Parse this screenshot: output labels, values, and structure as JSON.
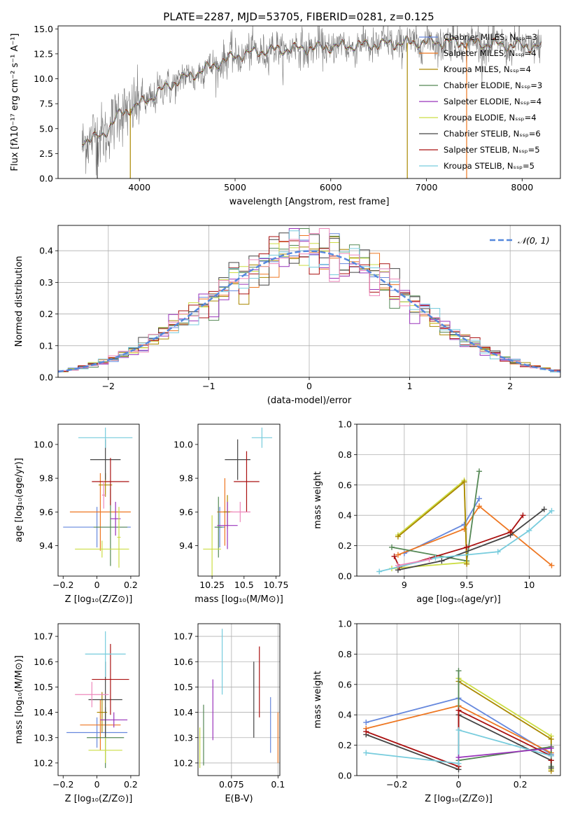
{
  "figure_title": "PLATE=2287, MJD=53705, FIBERID=0281, z=0.125",
  "colors": {
    "Chabrier MILES": "#6688dd",
    "Salpeter MILES": "#ee7722",
    "Kroupa MILES": "#aa8800",
    "Chabrier ELODIE": "#558855",
    "Salpeter ELODIE": "#9933bb",
    "Kroupa ELODIE": "#ccdd44",
    "Chabrier STELIB": "#444444",
    "Salpeter STELIB": "#aa1111",
    "Kroupa STELIB": "#77ccdd",
    "extra_pink": "#ee88bb",
    "gaussian": "#5588dd",
    "data_gray": "#777777"
  },
  "chart_data": [
    {
      "id": "spectrum",
      "type": "line",
      "title": "PLATE=2287, MJD=53705, FIBERID=0281, z=0.125",
      "xlabel": "wavelength [Angstrom, rest frame]",
      "ylabel": "Flux [fλ10⁻¹⁷ erg cm⁻² s⁻¹ A⁻¹]",
      "xlim": [
        3150,
        8400
      ],
      "ylim": [
        0,
        15.3
      ],
      "xticks": [
        4000,
        5000,
        6000,
        7000,
        8000
      ],
      "yticks": [
        0.0,
        2.5,
        5.0,
        7.5,
        10.0,
        12.5,
        15.0
      ],
      "legend": "right",
      "legend_entries": [
        "Chabrier MILES, Nₛₛₚ=3",
        "Salpeter MILES, Nₛₛₚ=4",
        "Kroupa MILES, Nₛₛₚ=4",
        "Chabrier ELODIE, Nₛₛₚ=3",
        "Salpeter ELODIE, Nₛₛₚ=4",
        "Kroupa ELODIE, Nₛₛₚ=4",
        "Chabrier STELIB, Nₛₛₚ=6",
        "Salpeter STELIB, Nₛₛₚ=5",
        "Kroupa STELIB, Nₛₛₚ=5"
      ],
      "continuum": {
        "x": [
          3400,
          3600,
          3800,
          3950,
          4100,
          4300,
          4500,
          4700,
          5000,
          5300,
          5600,
          6000,
          6400,
          6800,
          7200,
          7600,
          8000,
          8200
        ],
        "y": [
          3.8,
          4.2,
          6.5,
          7.2,
          8.0,
          9.3,
          10.2,
          11.0,
          12.3,
          12.8,
          13.0,
          13.2,
          13.4,
          13.6,
          13.7,
          13.5,
          13.3,
          13.2
        ]
      }
    },
    {
      "id": "residuals",
      "type": "line",
      "xlabel": "(data-model)/error",
      "ylabel": "Normed distribution",
      "xlim": [
        -2.5,
        2.5
      ],
      "ylim": [
        0,
        0.48
      ],
      "xticks": [
        -2,
        -1,
        0,
        1,
        2
      ],
      "yticks": [
        0.0,
        0.1,
        0.2,
        0.3,
        0.4
      ],
      "grid": true,
      "legend": "top-right",
      "gaussian_label": "𝒩(0, 1)",
      "bin_width": 0.1
    },
    {
      "id": "age-vs-Z",
      "type": "scatter",
      "xlabel": "Z [log₁₀(Z/Z⊙)]",
      "ylabel": "age  [log₁₀(age/yr)]",
      "xlim": [
        -0.23,
        0.25
      ],
      "ylim": [
        9.22,
        10.12
      ],
      "xticks": [
        -0.2,
        0.0,
        0.2
      ],
      "yticks": [
        9.4,
        9.6,
        9.8,
        10.0
      ],
      "points": [
        {
          "series": "Chabrier MILES",
          "x": 0.0,
          "y": 9.51,
          "xerr": 0.2,
          "yerr": 0.12
        },
        {
          "series": "Salpeter MILES",
          "x": 0.02,
          "y": 9.6,
          "xerr": 0.18,
          "yerr": 0.23
        },
        {
          "series": "Kroupa MILES",
          "x": 0.05,
          "y": 9.76,
          "xerr": 0.04,
          "yerr": 0.07
        },
        {
          "series": "Chabrier ELODIE",
          "x": 0.08,
          "y": 9.51,
          "xerr": 0.1,
          "yerr": 0.23
        },
        {
          "series": "Salpeter ELODIE",
          "x": 0.11,
          "y": 9.56,
          "xerr": 0.03,
          "yerr": 0.1
        },
        {
          "series": "Kroupa ELODIE",
          "x": 0.03,
          "y": 9.38,
          "xerr": 0.16,
          "yerr": 0.05
        },
        {
          "series": "Chabrier STELIB",
          "x": 0.05,
          "y": 9.91,
          "xerr": 0.09,
          "yerr": 0.12
        },
        {
          "series": "Salpeter STELIB",
          "x": 0.08,
          "y": 9.78,
          "xerr": 0.11,
          "yerr": 0.14
        },
        {
          "series": "Kroupa STELIB",
          "x": 0.05,
          "y": 10.04,
          "xerr": 0.16,
          "yerr": 0.06
        },
        {
          "series": "extra_pink",
          "x": 0.04,
          "y": 9.7,
          "xerr": 0.01,
          "yerr": 0.08
        },
        {
          "series": "Kroupa ELODIE",
          "x": 0.13,
          "y": 9.45,
          "xerr": 0.01,
          "yerr": 0.18
        }
      ]
    },
    {
      "id": "age-vs-mass",
      "type": "scatter",
      "xlabel": "mass [log₁₀(M/M⊙)]",
      "ylabel": "",
      "xlim": [
        10.14,
        10.78
      ],
      "ylim": [
        9.22,
        10.12
      ],
      "xticks": [
        10.25,
        10.5,
        10.75
      ],
      "yticks": [
        9.4,
        9.6,
        9.8,
        10.0
      ],
      "points": [
        {
          "series": "Chabrier MILES",
          "x": 10.31,
          "y": 9.51,
          "xerr": 0.04,
          "yerr": 0.12
        },
        {
          "series": "Salpeter MILES",
          "x": 10.35,
          "y": 9.6,
          "xerr": 0.06,
          "yerr": 0.2
        },
        {
          "series": "Kroupa MILES",
          "x": 10.37,
          "y": 9.6,
          "xerr": 0.03,
          "yerr": 0.1
        },
        {
          "series": "Chabrier ELODIE",
          "x": 10.3,
          "y": 9.51,
          "xerr": 0.03,
          "yerr": 0.18
        },
        {
          "series": "Salpeter ELODIE",
          "x": 10.37,
          "y": 9.52,
          "xerr": 0.08,
          "yerr": 0.14
        },
        {
          "series": "Kroupa ELODIE",
          "x": 10.25,
          "y": 9.38,
          "xerr": 0.07,
          "yerr": 0.2
        },
        {
          "series": "Chabrier STELIB",
          "x": 10.45,
          "y": 9.91,
          "xerr": 0.1,
          "yerr": 0.12
        },
        {
          "series": "Salpeter STELIB",
          "x": 10.52,
          "y": 9.78,
          "xerr": 0.1,
          "yerr": 0.18
        },
        {
          "series": "Kroupa STELIB",
          "x": 10.64,
          "y": 10.04,
          "xerr": 0.08,
          "yerr": 0.06
        },
        {
          "series": "extra_pink",
          "x": 10.47,
          "y": 9.6,
          "xerr": 0.08,
          "yerr": 0.06
        }
      ]
    },
    {
      "id": "weight-vs-age",
      "type": "line",
      "xlabel": "age  [log₁₀(age/yr)]",
      "ylabel": "mass weight",
      "xlim": [
        8.62,
        10.25
      ],
      "ylim": [
        0,
        1.0
      ],
      "xticks": [
        9.0,
        9.5,
        10.0
      ],
      "yticks": [
        0.0,
        0.2,
        0.4,
        0.6,
        0.8,
        1.0
      ],
      "grid": true,
      "series": [
        {
          "name": "Chabrier MILES",
          "x": [
            9.0,
            9.48,
            9.6
          ],
          "y": [
            0.15,
            0.34,
            0.51
          ]
        },
        {
          "name": "Salpeter MILES",
          "x": [
            8.95,
            9.48,
            9.6,
            10.18
          ],
          "y": [
            0.14,
            0.31,
            0.46,
            0.07
          ]
        },
        {
          "name": "Chabrier ELODIE",
          "x": [
            8.9,
            9.5,
            9.6
          ],
          "y": [
            0.19,
            0.1,
            0.69
          ]
        },
        {
          "name": "Kroupa ELODIE",
          "x": [
            8.95,
            9.48,
            9.5,
            8.9
          ],
          "y": [
            0.27,
            0.63,
            0.09,
            0.05
          ]
        },
        {
          "name": "Kroupa MILES",
          "x": [
            8.95,
            9.48,
            9.5
          ],
          "y": [
            0.26,
            0.62,
            0.08
          ]
        },
        {
          "name": "Chabrier STELIB",
          "x": [
            8.95,
            9.3,
            9.85,
            10.12
          ],
          "y": [
            0.04,
            0.1,
            0.27,
            0.44
          ]
        },
        {
          "name": "Salpeter STELIB",
          "x": [
            8.92,
            8.96,
            9.5,
            9.85,
            9.95
          ],
          "y": [
            0.13,
            0.06,
            0.19,
            0.29,
            0.4
          ]
        },
        {
          "name": "Kroupa STELIB",
          "x": [
            8.8,
            9.25,
            9.75,
            10.0,
            10.18
          ],
          "y": [
            0.03,
            0.12,
            0.16,
            0.3,
            0.43
          ]
        },
        {
          "name": "extra_pink",
          "x": [
            8.95,
            9.2
          ],
          "y": [
            0.07,
            0.11
          ]
        }
      ]
    },
    {
      "id": "mass-vs-Z",
      "type": "scatter",
      "xlabel": "Z [log₁₀(Z/Z⊙)]",
      "ylabel": "mass [log₁₀(M/M⊙)]",
      "xlim": [
        -0.23,
        0.25
      ],
      "ylim": [
        10.15,
        10.75
      ],
      "xticks": [
        -0.2,
        0.0,
        0.2
      ],
      "yticks": [
        10.2,
        10.3,
        10.4,
        10.5,
        10.6,
        10.7
      ],
      "points": [
        {
          "series": "Chabrier MILES",
          "x": 0.0,
          "y": 10.32,
          "xerr": 0.18,
          "yerr": 0.06
        },
        {
          "series": "Salpeter MILES",
          "x": 0.02,
          "y": 10.35,
          "xerr": 0.12,
          "yerr": 0.1
        },
        {
          "series": "Kroupa MILES",
          "x": 0.03,
          "y": 10.4,
          "xerr": 0.03,
          "yerr": 0.08
        },
        {
          "series": "Chabrier ELODIE",
          "x": 0.05,
          "y": 10.3,
          "xerr": 0.11,
          "yerr": 0.12
        },
        {
          "series": "Salpeter ELODIE",
          "x": 0.1,
          "y": 10.37,
          "xerr": 0.08,
          "yerr": 0.03
        },
        {
          "series": "Kroupa ELODIE",
          "x": 0.05,
          "y": 10.25,
          "xerr": 0.1,
          "yerr": 0.05
        },
        {
          "series": "Chabrier STELIB",
          "x": 0.05,
          "y": 10.45,
          "xerr": 0.1,
          "yerr": 0.15
        },
        {
          "series": "Salpeter STELIB",
          "x": 0.08,
          "y": 10.53,
          "xerr": 0.11,
          "yerr": 0.14
        },
        {
          "series": "Kroupa STELIB",
          "x": 0.05,
          "y": 10.63,
          "xerr": 0.12,
          "yerr": 0.09
        },
        {
          "series": "extra_pink",
          "x": -0.03,
          "y": 10.47,
          "xerr": 0.1,
          "yerr": 0.05
        }
      ]
    },
    {
      "id": "mass-vs-EBV",
      "type": "scatter",
      "xlabel": "E(B-V)",
      "ylabel": "",
      "xlim": [
        0.057,
        0.101
      ],
      "ylim": [
        10.15,
        10.75
      ],
      "xticks": [
        0.075,
        0.1
      ],
      "yticks": [
        10.2,
        10.3,
        10.4,
        10.5,
        10.6,
        10.7
      ],
      "grid": true,
      "points": [
        {
          "series": "Kroupa ELODIE",
          "x": 0.058,
          "y": 10.26,
          "yerr": 0.08
        },
        {
          "series": "Chabrier ELODIE",
          "x": 0.06,
          "y": 10.31,
          "yerr": 0.12
        },
        {
          "series": "Salpeter ELODIE",
          "x": 0.065,
          "y": 10.41,
          "yerr": 0.12
        },
        {
          "series": "Kroupa STELIB",
          "x": 0.07,
          "y": 10.6,
          "yerr": 0.13
        },
        {
          "series": "Chabrier STELIB",
          "x": 0.087,
          "y": 10.45,
          "yerr": 0.15
        },
        {
          "series": "Salpeter STELIB",
          "x": 0.09,
          "y": 10.52,
          "yerr": 0.14
        },
        {
          "series": "Chabrier MILES",
          "x": 0.096,
          "y": 10.35,
          "yerr": 0.11
        },
        {
          "series": "Salpeter MILES",
          "x": 0.1,
          "y": 10.3,
          "yerr": 0.1
        }
      ]
    },
    {
      "id": "weight-vs-Z",
      "type": "line",
      "xlabel": "Z [log₁₀(Z/Z⊙)]",
      "ylabel": "mass weight",
      "xlim": [
        -0.33,
        0.33
      ],
      "ylim": [
        0,
        1.0
      ],
      "xticks": [
        -0.2,
        0.0,
        0.2
      ],
      "yticks": [
        0.0,
        0.2,
        0.4,
        0.6,
        0.8,
        1.0
      ],
      "grid": true,
      "series": [
        {
          "name": "Chabrier MILES",
          "x": [
            -0.3,
            0.0,
            0.3
          ],
          "y": [
            0.35,
            0.51,
            0.14
          ]
        },
        {
          "name": "Salpeter MILES",
          "x": [
            -0.3,
            0.0,
            0.3
          ],
          "y": [
            0.31,
            0.46,
            0.15
          ]
        },
        {
          "name": "Kroupa ELODIE",
          "x": [
            0.0,
            0.3,
            0.3
          ],
          "y": [
            0.64,
            0.26,
            0.04
          ]
        },
        {
          "name": "Kroupa MILES",
          "x": [
            0.0,
            0.3,
            0.3
          ],
          "y": [
            0.62,
            0.24,
            0.03
          ]
        },
        {
          "name": "Chabrier ELODIE",
          "x": [
            0.0,
            0.0,
            0.3,
            0.3
          ],
          "y": [
            0.69,
            0.1,
            0.19,
            0.06
          ]
        },
        {
          "name": "Chabrier STELIB",
          "x": [
            -0.3,
            0.0,
            0.0,
            0.3,
            0.3
          ],
          "y": [
            0.27,
            0.04,
            0.4,
            0.1,
            0.05
          ]
        },
        {
          "name": "Salpeter STELIB",
          "x": [
            -0.3,
            0.0,
            0.0,
            0.3,
            0.3
          ],
          "y": [
            0.29,
            0.06,
            0.43,
            0.13,
            0.1
          ]
        },
        {
          "name": "Kroupa STELIB",
          "x": [
            -0.3,
            0.0,
            0.0,
            0.3
          ],
          "y": [
            0.15,
            0.08,
            0.3,
            0.13
          ]
        },
        {
          "name": "Salpeter ELODIE",
          "x": [
            0.0,
            0.3
          ],
          "y": [
            0.12,
            0.18
          ]
        }
      ]
    }
  ]
}
